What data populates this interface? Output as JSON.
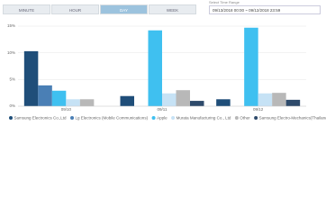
{
  "tabs": [
    "MINUTE",
    "HOUR",
    "DAY",
    "WEEK"
  ],
  "selected_tab": 2,
  "time_range": {
    "label": "Select Time Range",
    "value": "09/13/2018 00:00 ~ 09/12/2018 23:59"
  },
  "chart_data": {
    "type": "bar",
    "categories": [
      "09/10",
      "09/11",
      "09/12"
    ],
    "series": [
      {
        "name": "Samsung Electronics Co.,Ltd",
        "color": "#1f4e79",
        "values": [
          10.3,
          1.9,
          1.3
        ]
      },
      {
        "name": "Lg Electronics (Mobile Communications)",
        "color": "#4a7fb5",
        "values": [
          3.9,
          0,
          0
        ]
      },
      {
        "name": "Apple",
        "color": "#3fc0f0",
        "values": [
          2.9,
          14.2,
          14.7
        ]
      },
      {
        "name": "Murata Manufacturing Co., Ltd",
        "color": "#c6e2f5",
        "values": [
          1.3,
          2.4,
          2.4
        ]
      },
      {
        "name": "Other",
        "color": "#b8b8b8",
        "values": [
          1.3,
          3.0,
          2.5
        ]
      },
      {
        "name": "Samsung Electro-Mechanics(Thailand)",
        "color": "#2e4a6b",
        "values": [
          0,
          1.0,
          1.2
        ]
      }
    ],
    "ylim": [
      0,
      15
    ],
    "yticks": [
      {
        "value": 0,
        "label": "0%"
      },
      {
        "value": 5,
        "label": "5%"
      },
      {
        "value": 10,
        "label": "10%"
      },
      {
        "value": 15,
        "label": "15%"
      }
    ],
    "grid": true
  }
}
